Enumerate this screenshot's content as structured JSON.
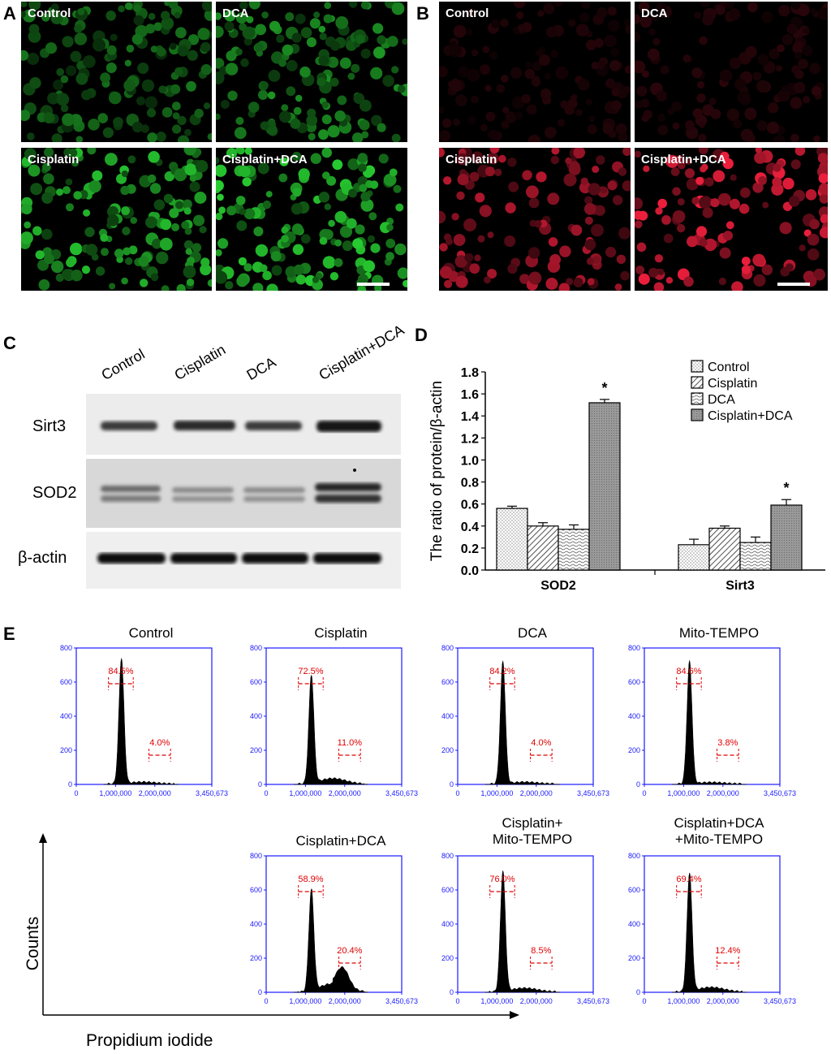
{
  "panels": {
    "a": {
      "letter": "A",
      "images": [
        "Control",
        "DCA",
        "Cisplatin",
        "Cisplatin+DCA"
      ]
    },
    "b": {
      "letter": "B",
      "images": [
        "Control",
        "DCA",
        "Cisplatin",
        "Cisplatin+DCA"
      ]
    },
    "c": {
      "letter": "C",
      "lanes": [
        "Control",
        "Cisplatin",
        "DCA",
        "Cisplatin+DCA"
      ],
      "rows": [
        "Sirt3",
        "SOD2",
        "β-actin"
      ]
    },
    "d": {
      "letter": "D"
    },
    "e": {
      "letter": "E",
      "xaxis_title": "Propidium iodide",
      "yaxis_title": "Counts"
    }
  },
  "chart_data": [
    {
      "type": "bar",
      "panel": "D",
      "categories": [
        "SOD2",
        "Sirt3"
      ],
      "ylabel": "The ratio of protein/β-actin",
      "ylim": [
        0,
        1.8
      ],
      "yticks": [
        "0.0",
        "0.2",
        "0.4",
        "0.6",
        "0.8",
        "1.0",
        "1.2",
        "1.4",
        "1.6",
        "1.8"
      ],
      "legend_position": "top-right",
      "series": [
        {
          "name": "Control",
          "values": [
            0.56,
            0.23
          ],
          "errors": [
            0.02,
            0.05
          ]
        },
        {
          "name": "Cisplatin",
          "values": [
            0.4,
            0.38
          ],
          "errors": [
            0.03,
            0.02
          ]
        },
        {
          "name": "DCA",
          "values": [
            0.37,
            0.25
          ],
          "errors": [
            0.04,
            0.05
          ]
        },
        {
          "name": "Cisplatin+DCA",
          "values": [
            1.52,
            0.59
          ],
          "errors": [
            0.03,
            0.05
          ]
        }
      ],
      "annotations": [
        "*",
        "*"
      ]
    },
    {
      "type": "area",
      "panel": "E",
      "xticks": [
        "0",
        "1,000,000",
        "2,000,000",
        "3,450,673"
      ],
      "xlim": [
        0,
        3450673
      ],
      "yticks": [
        "0",
        "200",
        "400",
        "600",
        "800"
      ],
      "ylim": [
        0,
        800
      ],
      "histograms": [
        {
          "title": "Control",
          "g1_label": "84.5%",
          "g2_label": "4.0%",
          "peak": 740,
          "tail": 0.06
        },
        {
          "title": "Cisplatin",
          "g1_label": "72.5%",
          "g2_label": "11.0%",
          "peak": 640,
          "tail": 0.2
        },
        {
          "title": "DCA",
          "g1_label": "84.2%",
          "g2_label": "4.0%",
          "peak": 720,
          "tail": 0.06
        },
        {
          "title": "Mito-TEMPO",
          "g1_label": "84.6%",
          "g2_label": "3.8%",
          "peak": 720,
          "tail": 0.05
        },
        {
          "title": "Cisplatin+DCA",
          "g1_label": "58.9%",
          "g2_label": "20.4%",
          "peak": 600,
          "tail": 0.32
        },
        {
          "title": "Cisplatin+\nMito-TEMPO",
          "g1_label": "76.0%",
          "g2_label": "8.5%",
          "peak": 710,
          "tail": 0.12
        },
        {
          "title": "Cisplatin+DCA\n+Mito-TEMPO",
          "g1_label": "69.4%",
          "g2_label": "12.4%",
          "peak": 700,
          "tail": 0.15
        }
      ]
    }
  ],
  "colors": {
    "green_cells": "#3fcf3a",
    "red_cells": "#e0203a",
    "flow_axis": "#1a1aff",
    "gate": "#e00000"
  }
}
